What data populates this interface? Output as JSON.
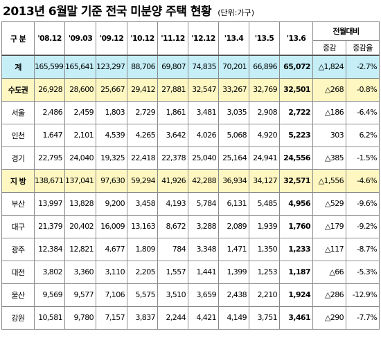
{
  "title": "2013년 6월말 기준 전국 미분양 주택 현황",
  "unit": "(단위:가구)",
  "header": {
    "category": "구  분",
    "periods": [
      "'08.12",
      "'09.03",
      "'09.12",
      "'10.12",
      "'11.12",
      "'12.12",
      "'13.4",
      "'13.5",
      "'13.6"
    ],
    "change_group": "전월대비",
    "change_cols": [
      "증감",
      "증감율"
    ]
  },
  "rows": [
    {
      "label": "계",
      "type": "total",
      "values": [
        "165,599",
        "165,641",
        "123,297",
        "88,706",
        "69,807",
        "74,835",
        "70,201",
        "66,896",
        "65,072"
      ],
      "change": "△1,824",
      "rate": "-2.7%"
    },
    {
      "label": "수도권",
      "type": "region",
      "values": [
        "26,928",
        "28,600",
        "25,667",
        "29,412",
        "27,881",
        "32,547",
        "33,267",
        "32,769",
        "32,501"
      ],
      "change": "△268",
      "rate": "-0.8%"
    },
    {
      "label": "서울",
      "type": "sub",
      "values": [
        "2,486",
        "2,459",
        "1,803",
        "2,729",
        "1,861",
        "3,481",
        "3,035",
        "2,908",
        "2,722"
      ],
      "change": "△186",
      "rate": "-6.4%"
    },
    {
      "label": "인천",
      "type": "sub",
      "values": [
        "1,647",
        "2,101",
        "4,539",
        "4,265",
        "3,642",
        "4,026",
        "5,068",
        "4,920",
        "5,223"
      ],
      "change": "303",
      "rate": "6.2%"
    },
    {
      "label": "경기",
      "type": "sub",
      "values": [
        "22,795",
        "24,040",
        "19,325",
        "22,418",
        "22,378",
        "25,040",
        "25,164",
        "24,941",
        "24,556"
      ],
      "change": "△385",
      "rate": "-1.5%"
    },
    {
      "label": "지  방",
      "type": "region",
      "values": [
        "138,671",
        "137,041",
        "97,630",
        "59,294",
        "41,926",
        "42,288",
        "36,934",
        "34,127",
        "32,571"
      ],
      "change": "△1,556",
      "rate": "-4.6%"
    },
    {
      "label": "부산",
      "type": "sub",
      "values": [
        "13,997",
        "13,828",
        "9,200",
        "3,458",
        "4,193",
        "5,784",
        "6,131",
        "5,485",
        "4,956"
      ],
      "change": "△529",
      "rate": "-9.6%"
    },
    {
      "label": "대구",
      "type": "sub",
      "values": [
        "21,379",
        "20,402",
        "16,009",
        "13,163",
        "8,672",
        "3,288",
        "2,089",
        "1,939",
        "1,760"
      ],
      "change": "△179",
      "rate": "-9.2%"
    },
    {
      "label": "광주",
      "type": "sub",
      "values": [
        "12,384",
        "12,821",
        "4,677",
        "1,809",
        "784",
        "3,348",
        "1,471",
        "1,350",
        "1,233"
      ],
      "change": "△117",
      "rate": "-8.7%"
    },
    {
      "label": "대전",
      "type": "sub",
      "values": [
        "3,802",
        "3,360",
        "3,110",
        "2,205",
        "1,557",
        "1,441",
        "1,399",
        "1,253",
        "1,187"
      ],
      "change": "△66",
      "rate": "-5.3%"
    },
    {
      "label": "울산",
      "type": "sub",
      "values": [
        "9,569",
        "9,577",
        "7,106",
        "5,575",
        "3,510",
        "3,659",
        "2,438",
        "2,210",
        "1,924"
      ],
      "change": "△286",
      "rate": "-12.9%"
    },
    {
      "label": "강원",
      "type": "sub",
      "values": [
        "10,581",
        "9,780",
        "7,157",
        "3,837",
        "2,244",
        "4,421",
        "4,149",
        "3,751",
        "3,461"
      ],
      "change": "△290",
      "rate": "-7.7%"
    }
  ]
}
